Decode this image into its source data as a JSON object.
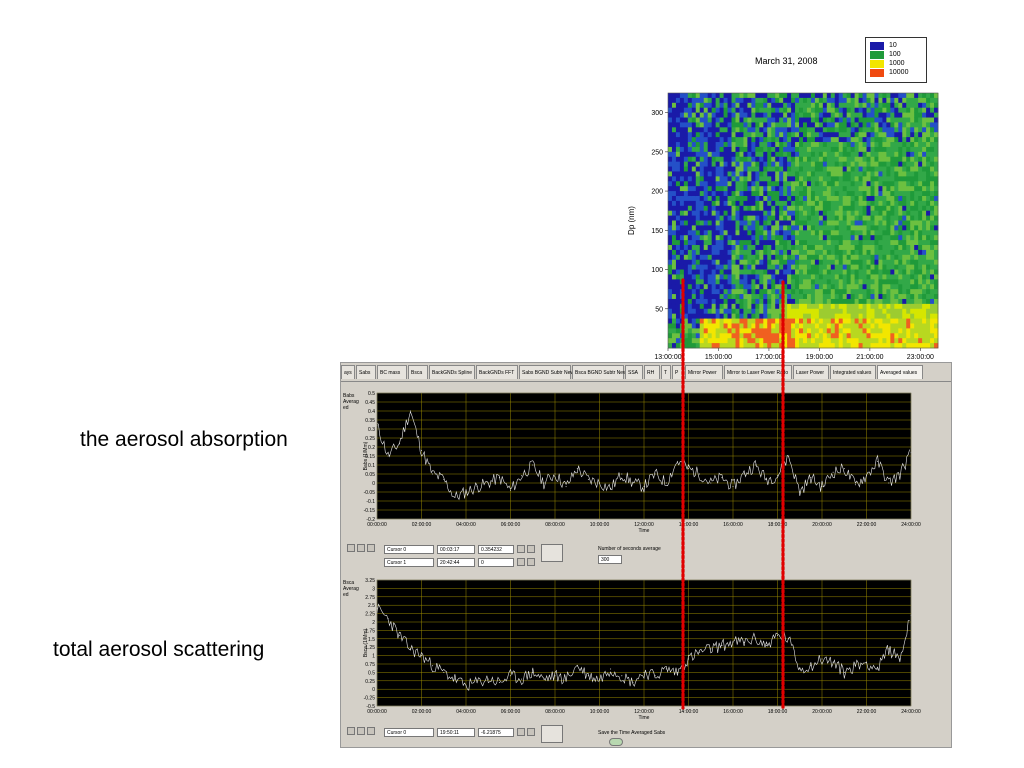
{
  "labels": {
    "absorption": "the aerosol absorption",
    "scattering": "total aerosol scattering"
  },
  "colors": {
    "dotted_marker": "#e00000",
    "plot_bg": "#000000",
    "plot_grid": "#9a8a00",
    "plot_trace": "#e8e8e8",
    "panel_bg": "#d4d0c8"
  },
  "chart_data": [
    {
      "type": "heatmap",
      "title": "March 31, 2008",
      "ylabel": "Dp (nm)",
      "ylim": [
        0,
        325
      ],
      "yticks": [
        "50",
        "100",
        "150",
        "200",
        "250",
        "300"
      ],
      "xticks": [
        "13:00:00",
        "15:00:00",
        "17:00:00",
        "19:00:00",
        "21:00:00",
        "23:00:00"
      ],
      "xlim_hours": [
        13,
        23.7
      ],
      "legend": {
        "position": "top-right",
        "entries": [
          {
            "label": "10",
            "color": "#1a1aa8"
          },
          {
            "label": "100",
            "color": "#1f9a3a"
          },
          {
            "label": "1000",
            "color": "#f2e600"
          },
          {
            "label": "10000",
            "color": "#f04a10"
          }
        ]
      }
    },
    {
      "type": "line",
      "ylabel": "Babs (1/Mm)",
      "y_control_label": [
        "Babs",
        "Averag",
        "ed"
      ],
      "xlabel": "Time",
      "ylim": [
        -0.2,
        0.5
      ],
      "yticks": [
        "0.5",
        "0.45",
        "0.4",
        "0.35",
        "0.3",
        "0.25",
        "0.2",
        "0.15",
        "0.1",
        "0.05",
        "0",
        "-0.05",
        "-0.1",
        "-0.15",
        "-0.2"
      ],
      "xticks": [
        "00:00:00",
        "02:00:00",
        "04:00:00",
        "06:00:00",
        "08:00:00",
        "10:00:00",
        "12:00:00",
        "14:00:00",
        "16:00:00",
        "18:00:00",
        "20:00:00",
        "22:00:00",
        "24:00:00"
      ],
      "x_hours": [
        0,
        0.5,
        1,
        1.5,
        2,
        2.5,
        3,
        3.5,
        4,
        4.5,
        5,
        5.5,
        6,
        6.5,
        7,
        7.5,
        8,
        8.5,
        9,
        9.5,
        10,
        10.5,
        11,
        11.5,
        12,
        12.5,
        13,
        13.5,
        14,
        14.5,
        15,
        15.5,
        16,
        16.5,
        17,
        17.5,
        18,
        18.5,
        19,
        19.5,
        20,
        20.5,
        21,
        21.5,
        22,
        22.5,
        23,
        23.5,
        24
      ],
      "series": [
        {
          "values": [
            0.32,
            0.15,
            0.22,
            0.4,
            0.18,
            0.05,
            0.02,
            -0.08,
            -0.05,
            -0.02,
            0.0,
            0.03,
            -0.04,
            0.04,
            0.1,
            0.0,
            0.05,
            -0.02,
            0.08,
            0.02,
            0.0,
            -0.03,
            0.05,
            0.0,
            -0.02,
            0.05,
            0.0,
            0.12,
            0.08,
            0.05,
            0.0,
            0.03,
            -0.02,
            0.05,
            0.1,
            0.02,
            0.04,
            0.15,
            -0.05,
            0.03,
            -0.02,
            0.06,
            0.08,
            -0.01,
            0.04,
            0.12,
            0.0,
            0.05,
            0.17
          ]
        }
      ],
      "cursors": [
        {
          "name": "Cursor 0",
          "time": "00:03:17",
          "value": "0.354232"
        },
        {
          "name": "Cursor 1",
          "time": "20:42:44",
          "value": "0"
        }
      ],
      "averaging": {
        "label": "Number of seconds average",
        "value": "300"
      }
    },
    {
      "type": "line",
      "ylabel": "Bsca (1/Mm)",
      "y_control_label": [
        "Bsca",
        "Averag",
        "ed"
      ],
      "xlabel": "Time",
      "ylim": [
        -0.5,
        3.25
      ],
      "yticks": [
        "3.25",
        "3",
        "2.75",
        "2.5",
        "2.25",
        "2",
        "1.75",
        "1.5",
        "1.25",
        "1",
        "0.75",
        "0.5",
        "0.25",
        "0",
        "-0.25",
        "-0.5"
      ],
      "xticks": [
        "00:00:00",
        "02:00:00",
        "04:00:00",
        "06:00:00",
        "08:00:00",
        "10:00:00",
        "12:00:00",
        "14:00:00",
        "16:00:00",
        "18:00:00",
        "20:00:00",
        "22:00:00",
        "24:00:00"
      ],
      "x_hours": [
        0,
        0.5,
        1,
        1.5,
        2,
        2.5,
        3,
        3.5,
        4,
        4.5,
        5,
        5.5,
        6,
        6.5,
        7,
        7.5,
        8,
        8.5,
        9,
        9.5,
        10,
        10.5,
        11,
        11.5,
        12,
        12.5,
        13,
        13.5,
        14,
        14.5,
        15,
        15.5,
        16,
        16.5,
        17,
        17.5,
        18,
        18.5,
        19,
        19.5,
        20,
        20.5,
        21,
        21.5,
        22,
        22.5,
        23,
        23.5,
        24
      ],
      "series": [
        {
          "values": [
            2.4,
            2.1,
            1.6,
            1.2,
            1.0,
            0.7,
            0.5,
            0.3,
            0.1,
            0.2,
            0.3,
            0.2,
            0.4,
            0.3,
            0.5,
            0.3,
            0.4,
            0.3,
            0.7,
            0.4,
            0.3,
            0.6,
            0.4,
            0.2,
            0.5,
            0.4,
            0.6,
            0.5,
            0.9,
            1.1,
            1.2,
            1.3,
            1.4,
            1.4,
            1.5,
            1.3,
            1.6,
            1.5,
            0.6,
            0.7,
            0.9,
            0.8,
            0.5,
            0.7,
            0.8,
            0.6,
            1.2,
            0.9,
            2.2
          ]
        }
      ],
      "cursors": [
        {
          "name": "Cursor 0",
          "time": "19:50:11",
          "value": "-6.21875"
        }
      ],
      "save_label": "Save the Time Averaged Sabs"
    }
  ],
  "tabs": [
    "ays",
    "Sabs",
    "BC mass",
    "Bsca",
    "BackGNDs Spline",
    "BackGNDs FFT",
    "Sabs BGND Subtr New",
    "Bsca BGND Subtr New",
    "SSA",
    "RH",
    "T",
    "P",
    "Mirror Power",
    "Mirror to Laser Power Ratio",
    "Laser Power",
    "Integrated values",
    "Averaged values"
  ]
}
